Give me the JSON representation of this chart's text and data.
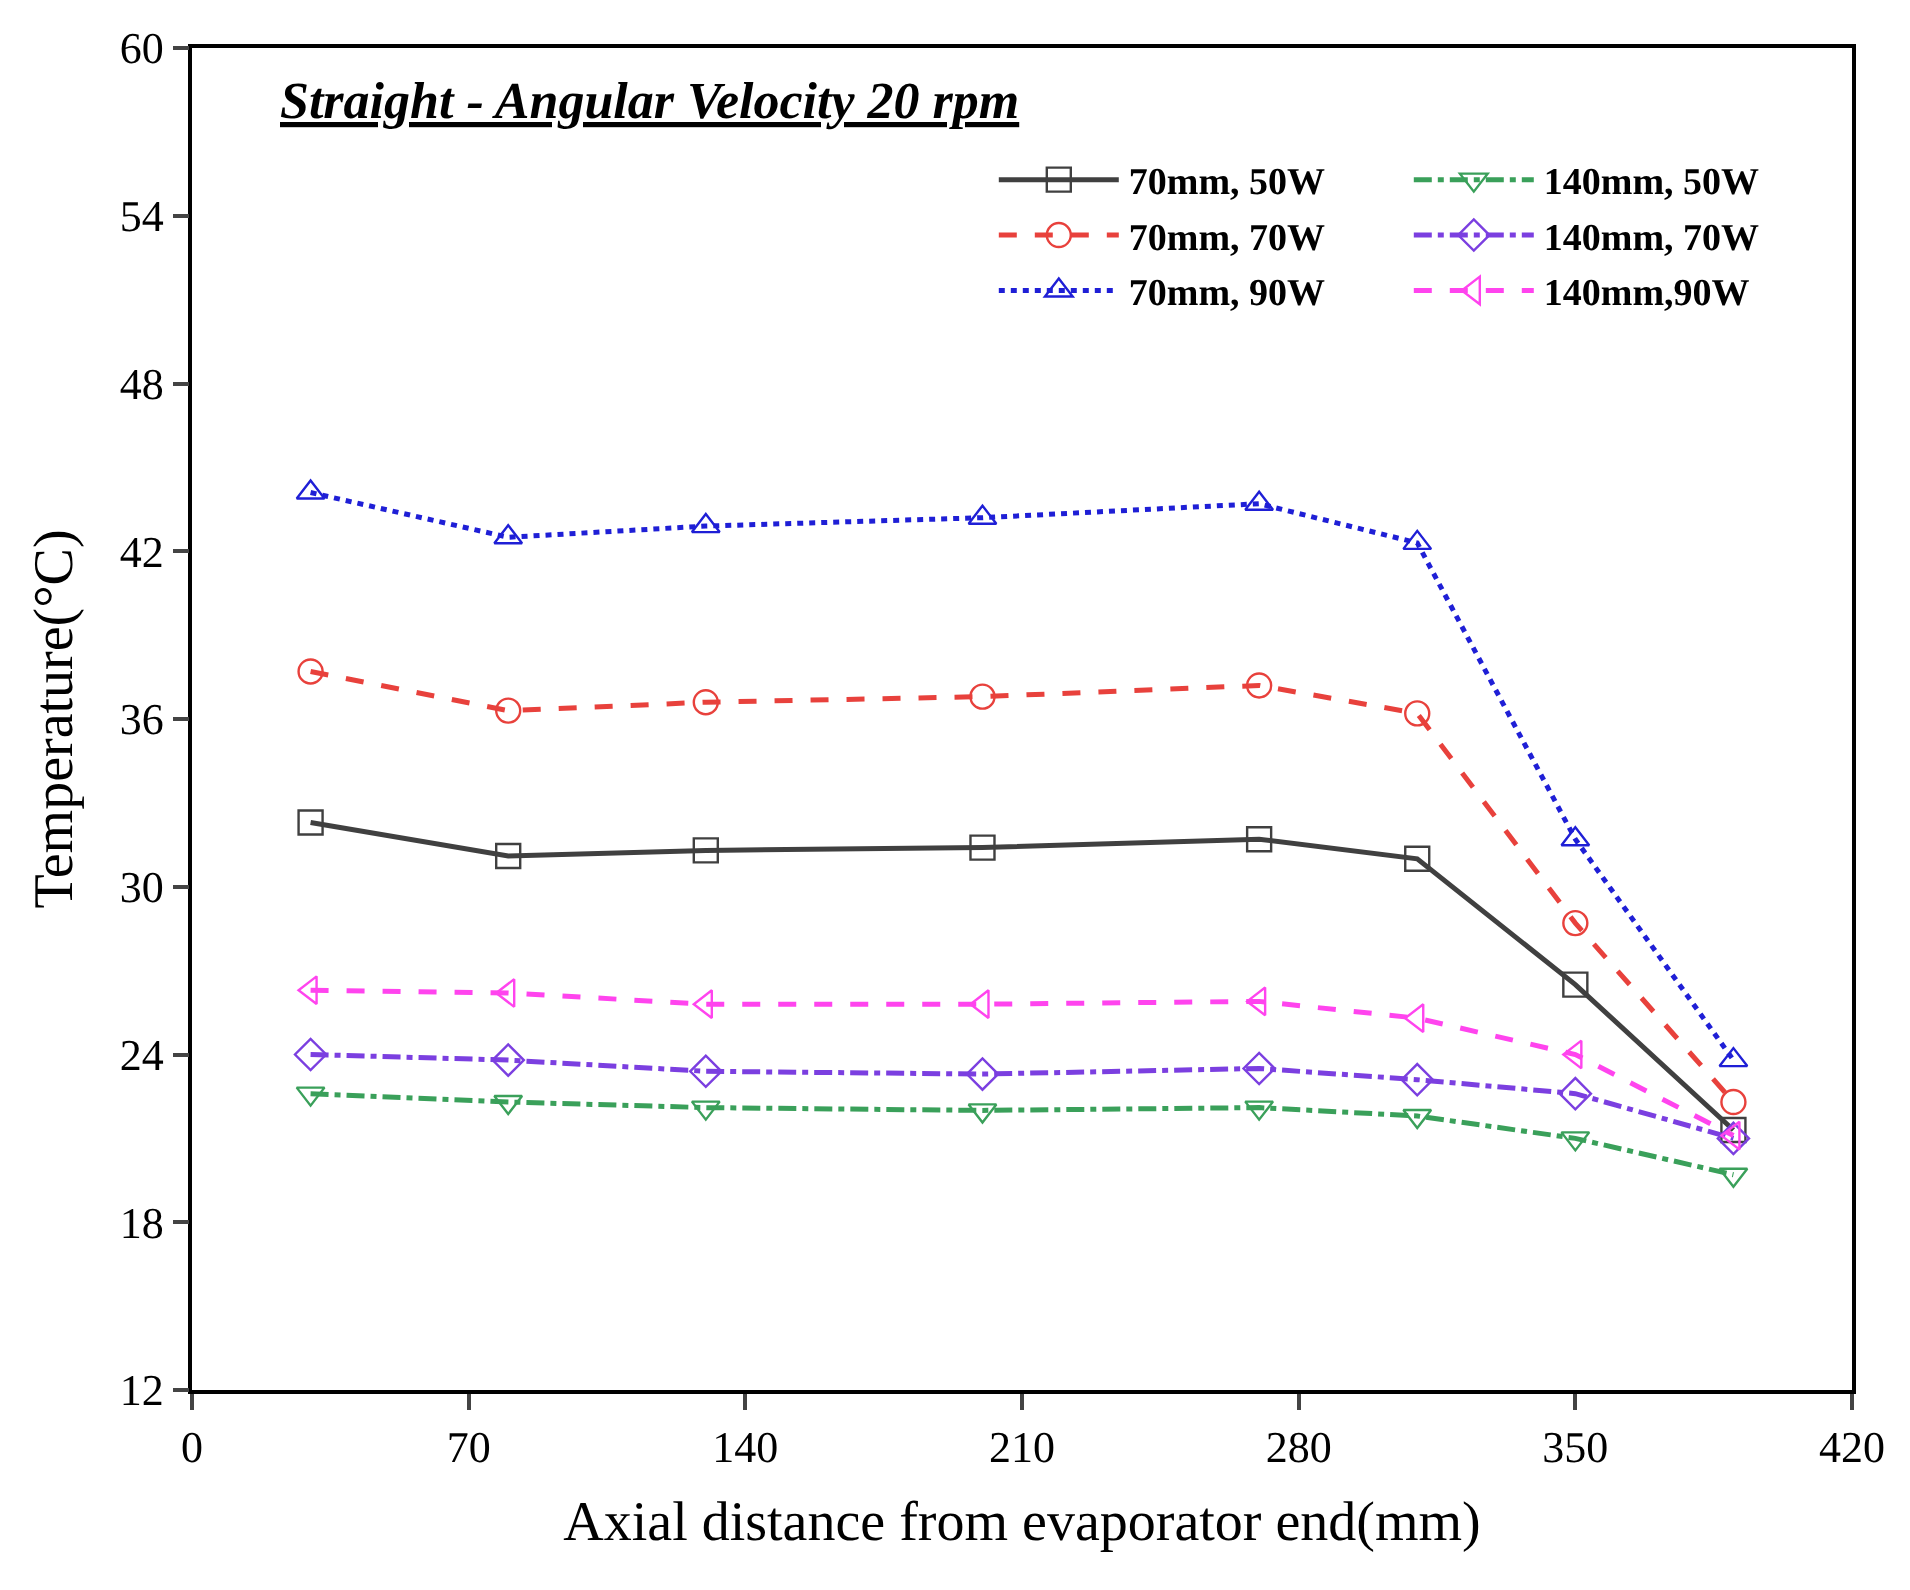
{
  "chart_data": {
    "type": "line",
    "title": "Straight - Angular Velocity 20 rpm",
    "xlabel": "Axial distance from evaporator end(mm)",
    "ylabel": "Temperature(°C)",
    "x": [
      30,
      80,
      130,
      200,
      270,
      310,
      350,
      390
    ],
    "xlim": [
      0,
      420
    ],
    "xticks": [
      0,
      70,
      140,
      210,
      280,
      350,
      420
    ],
    "ylim": [
      12,
      60
    ],
    "yticks": [
      12,
      18,
      24,
      30,
      36,
      42,
      48,
      54,
      60
    ],
    "legend": "top right",
    "series": [
      {
        "name": "70mm, 50W",
        "color": "#404040",
        "marker": "square",
        "line_style": "solid",
        "values": [
          32.3,
          31.1,
          31.3,
          31.4,
          31.7,
          31.0,
          26.5,
          21.3
        ]
      },
      {
        "name": "140mm, 50W",
        "color": "#3aa05a",
        "marker": "triangle-down",
        "line_style": "dashdot",
        "values": [
          22.6,
          22.3,
          22.1,
          22.0,
          22.1,
          21.8,
          21.0,
          19.7
        ]
      },
      {
        "name": "70mm, 70W",
        "color": "#e8413c",
        "marker": "circle",
        "line_style": "dashed",
        "values": [
          37.7,
          36.3,
          36.6,
          36.8,
          37.2,
          36.2,
          28.7,
          22.3
        ]
      },
      {
        "name": "140mm, 70W",
        "color": "#7b3fe0",
        "marker": "diamond",
        "line_style": "dashdot",
        "values": [
          24.0,
          23.8,
          23.4,
          23.3,
          23.5,
          23.1,
          22.6,
          21.0
        ]
      },
      {
        "name": "70mm, 90W",
        "color": "#1f1fd6",
        "marker": "triangle",
        "line_style": "dotted",
        "values": [
          44.1,
          42.5,
          42.9,
          43.2,
          43.7,
          42.3,
          31.7,
          23.8
        ]
      },
      {
        "name": "140mm,90W",
        "color": "#ff44ee",
        "marker": "triangle-left",
        "line_style": "dashed",
        "values": [
          26.3,
          26.2,
          25.8,
          25.8,
          25.9,
          25.3,
          24.0,
          21.1
        ]
      }
    ]
  }
}
